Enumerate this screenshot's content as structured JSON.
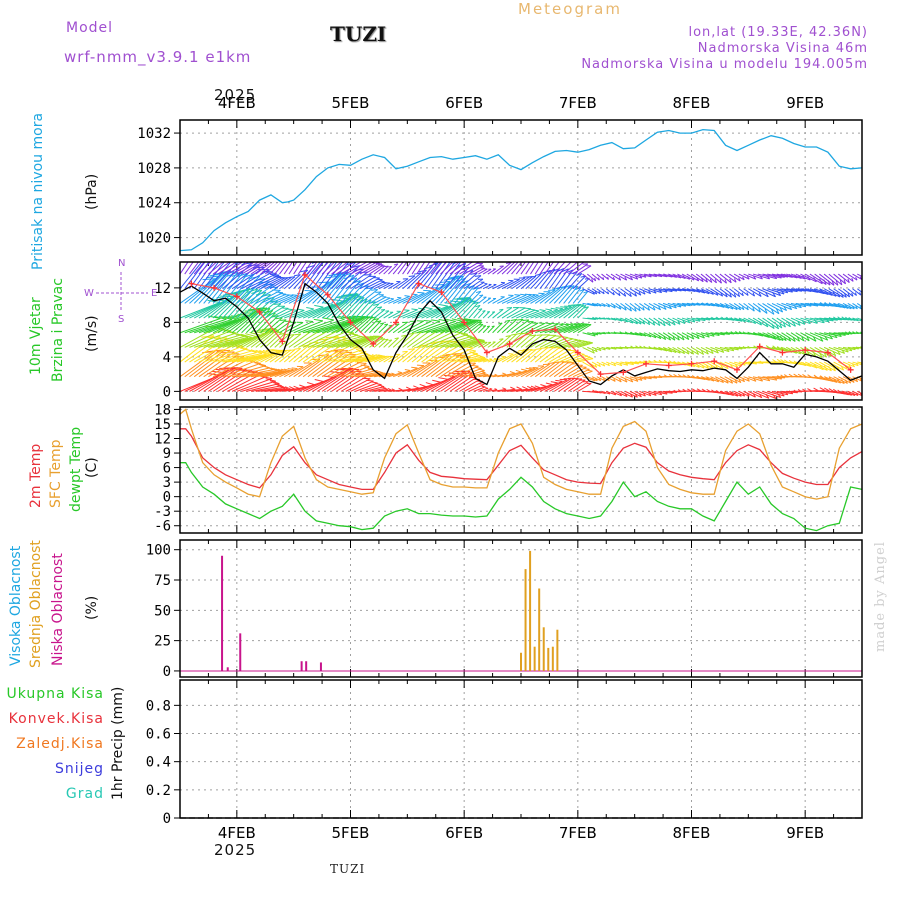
{
  "header": {
    "model_label": "Model",
    "model_name": "wrf-nmm_v3.9.1 e1km",
    "station": "TUZI",
    "meteogram": "Meteogram",
    "lonlat": "lon,lat (19.33E, 42.36N)",
    "elevation": "Nadmorska Visina 46m",
    "model_elevation": "Nadmorska Visina u modelu 194.005m",
    "footer_station": "TUZI",
    "credit": "made by Angel"
  },
  "time_axis": {
    "year": "2025",
    "day_labels": [
      "4FEB",
      "5FEB",
      "6FEB",
      "7FEB",
      "8FEB",
      "9FEB"
    ],
    "range_days": [
      -0.5,
      5.5
    ]
  },
  "chart_data": [
    {
      "type": "line",
      "name": "pressure",
      "ylabel": "(hPa)",
      "title_lines": [
        "Pritisak na nivou mora"
      ],
      "color": "#1ea7e1",
      "ylim": [
        1018,
        1033.5
      ],
      "yticks": [
        1020,
        1024,
        1028,
        1032
      ],
      "x": [
        -0.5,
        -0.4,
        -0.3,
        -0.2,
        -0.1,
        0,
        0.1,
        0.2,
        0.3,
        0.4,
        0.45,
        0.5,
        0.6,
        0.7,
        0.8,
        0.9,
        1,
        1.1,
        1.2,
        1.3,
        1.4,
        1.5,
        1.6,
        1.7,
        1.8,
        1.9,
        2,
        2.1,
        2.2,
        2.3,
        2.4,
        2.5,
        2.6,
        2.7,
        2.8,
        2.9,
        3,
        3.1,
        3.2,
        3.3,
        3.4,
        3.5,
        3.6,
        3.7,
        3.8,
        3.9,
        4,
        4.1,
        4.2,
        4.3,
        4.4,
        4.5,
        4.6,
        4.7,
        4.8,
        4.9,
        5,
        5.1,
        5.2,
        5.3,
        5.4,
        5.5
      ],
      "values": [
        1018.5,
        1018.6,
        1019.4,
        1020.8,
        1021.7,
        1022.4,
        1023.0,
        1024.3,
        1024.9,
        1024.0,
        1024.1,
        1024.3,
        1025.5,
        1027.0,
        1028.0,
        1028.4,
        1028.3,
        1029.0,
        1029.5,
        1029.2,
        1027.9,
        1028.2,
        1028.7,
        1029.2,
        1029.3,
        1029.0,
        1029.2,
        1029.4,
        1029.0,
        1029.5,
        1028.3,
        1027.8,
        1028.6,
        1029.3,
        1029.9,
        1030.0,
        1029.8,
        1030.1,
        1030.6,
        1030.9,
        1030.2,
        1030.3,
        1031.2,
        1032.1,
        1032.3,
        1032.0,
        1032.0,
        1032.4,
        1032.3,
        1030.6,
        1030.0,
        1030.6,
        1031.2,
        1031.7,
        1031.4,
        1030.8,
        1030.4,
        1030.4,
        1029.8,
        1028.2,
        1027.9,
        1028.0
      ]
    },
    {
      "type": "wind",
      "name": "wind",
      "ylabel": "(m/s)",
      "title_lines": [
        "10m Vjetar",
        "Brzina i Pravac"
      ],
      "ylim": [
        -1,
        15
      ],
      "yticks": [
        0,
        4,
        8,
        12
      ],
      "compass": {
        "n": "N",
        "s": "S",
        "e": "E",
        "w": "W"
      },
      "speed_x": [
        -0.5,
        -0.4,
        -0.3,
        -0.2,
        -0.1,
        0,
        0.1,
        0.2,
        0.3,
        0.4,
        0.5,
        0.6,
        0.7,
        0.8,
        0.9,
        1,
        1.1,
        1.2,
        1.3,
        1.4,
        1.5,
        1.6,
        1.7,
        1.8,
        1.9,
        2,
        2.1,
        2.2,
        2.3,
        2.4,
        2.5,
        2.6,
        2.7,
        2.8,
        2.9,
        3,
        3.1,
        3.2,
        3.3,
        3.4,
        3.5,
        3.6,
        3.7,
        3.8,
        3.9,
        4,
        4.1,
        4.2,
        4.3,
        4.4,
        4.5,
        4.6,
        4.7,
        4.8,
        4.9,
        5,
        5.1,
        5.2,
        5.3,
        5.4,
        5.5
      ],
      "speed_values": [
        11.5,
        12.2,
        11.4,
        10.5,
        10.8,
        9.8,
        8.5,
        6.0,
        4.5,
        4.2,
        8.0,
        12.5,
        11.5,
        10.2,
        7.8,
        6.0,
        5.0,
        2.5,
        1.5,
        4.5,
        6.5,
        9.0,
        10.5,
        9.2,
        6.5,
        4.8,
        1.5,
        0.8,
        4.0,
        5.0,
        4.2,
        5.5,
        6.0,
        5.8,
        4.8,
        3.0,
        1.2,
        0.8,
        1.8,
        2.5,
        1.8,
        2.2,
        2.6,
        2.4,
        2.3,
        2.5,
        2.4,
        2.7,
        2.5,
        1.5,
        2.8,
        4.5,
        3.2,
        3.2,
        2.8,
        4.3,
        4.0,
        3.5,
        2.4,
        1.3,
        1.8
      ],
      "gust_x": [
        -0.4,
        -0.2,
        0.0,
        0.2,
        0.4,
        0.6,
        0.8,
        1.0,
        1.2,
        1.4,
        1.6,
        1.8,
        2.0,
        2.2,
        2.4,
        2.6,
        2.8,
        3.0,
        3.2,
        3.4,
        3.6,
        3.8,
        4.0,
        4.2,
        4.4,
        4.6,
        4.8,
        5.0,
        5.2,
        5.4
      ],
      "gust_values": [
        12.5,
        12.0,
        11.0,
        9.2,
        5.8,
        13.5,
        11.2,
        8.0,
        5.5,
        8.0,
        12.5,
        11.5,
        8.0,
        4.5,
        5.5,
        7.0,
        7.2,
        4.5,
        2.0,
        2.2,
        3.2,
        3.0,
        3.2,
        3.5,
        2.5,
        5.2,
        4.5,
        4.8,
        4.5,
        2.5
      ]
    },
    {
      "type": "line",
      "name": "temperature",
      "ylabel": "(C)",
      "title_lines": [
        "2m Temp",
        "SFC Temp",
        "dewpt Temp"
      ],
      "ylim": [
        -7.5,
        18.5
      ],
      "yticks": [
        -6,
        -3,
        0,
        3,
        6,
        9,
        12,
        15,
        18
      ],
      "x": [
        -0.5,
        -0.45,
        -0.4,
        -0.3,
        -0.2,
        -0.1,
        0,
        0.1,
        0.2,
        0.3,
        0.4,
        0.5,
        0.6,
        0.7,
        0.8,
        0.9,
        1,
        1.1,
        1.2,
        1.3,
        1.4,
        1.5,
        1.6,
        1.7,
        1.8,
        1.9,
        2,
        2.1,
        2.2,
        2.3,
        2.4,
        2.5,
        2.6,
        2.7,
        2.8,
        2.9,
        3,
        3.1,
        3.2,
        3.3,
        3.4,
        3.5,
        3.6,
        3.7,
        3.8,
        3.9,
        4,
        4.1,
        4.2,
        4.3,
        4.4,
        4.5,
        4.6,
        4.7,
        4.8,
        4.9,
        5,
        5.1,
        5.2,
        5.3,
        5.4,
        5.5
      ],
      "series": [
        {
          "name": "2m Temp",
          "color": "#e8323c",
          "values": [
            14.0,
            14.0,
            12.5,
            8.0,
            6.0,
            4.5,
            3.5,
            2.5,
            1.8,
            4.5,
            8.5,
            10.3,
            7.0,
            4.5,
            3.5,
            2.5,
            2.0,
            1.5,
            1.5,
            5.0,
            9.0,
            10.7,
            7.5,
            5.0,
            4.2,
            4.0,
            3.7,
            3.6,
            3.5,
            6.5,
            9.5,
            10.6,
            8.0,
            5.5,
            4.5,
            3.5,
            3.0,
            2.8,
            2.7,
            7.0,
            10.0,
            11.0,
            10.2,
            7.0,
            5.3,
            4.5,
            4.0,
            3.7,
            3.5,
            7.0,
            9.5,
            10.7,
            9.7,
            7.0,
            4.8,
            3.8,
            3.0,
            2.5,
            2.5,
            6.0,
            8.0,
            9.3
          ]
        },
        {
          "name": "SFC Temp",
          "color": "#e8a030",
          "values": [
            17.0,
            18.0,
            14.0,
            7.0,
            4.5,
            3.0,
            1.8,
            0.5,
            0.0,
            7.0,
            12.5,
            14.5,
            8.0,
            3.5,
            2.0,
            1.5,
            1.0,
            0.5,
            0.8,
            8.0,
            13.0,
            14.8,
            9.0,
            3.5,
            2.5,
            2.0,
            2.0,
            1.8,
            1.8,
            9.0,
            14.0,
            15.0,
            11.0,
            4.0,
            2.5,
            1.5,
            1.0,
            0.5,
            0.5,
            10.0,
            14.5,
            15.5,
            13.5,
            6.0,
            2.5,
            1.5,
            0.8,
            0.5,
            0.5,
            9.5,
            13.5,
            15.0,
            13.0,
            6.5,
            2.0,
            1.0,
            0.0,
            -0.5,
            0.0,
            10.0,
            14.0,
            15.0
          ]
        },
        {
          "name": "dewpt Temp",
          "color": "#28c828",
          "values": [
            7.0,
            7.0,
            5.0,
            2.0,
            0.5,
            -1.5,
            -2.5,
            -3.5,
            -4.5,
            -3.0,
            -2.0,
            0.5,
            -3.0,
            -5.0,
            -5.5,
            -6.0,
            -6.2,
            -6.8,
            -6.5,
            -4.0,
            -3.0,
            -2.5,
            -3.5,
            -3.5,
            -3.8,
            -4.0,
            -4.0,
            -4.2,
            -4.0,
            -0.5,
            1.5,
            4.0,
            2.0,
            -1.0,
            -2.5,
            -3.5,
            -4.0,
            -4.5,
            -4.0,
            -1.0,
            3.0,
            0.0,
            1.0,
            -1.0,
            -2.0,
            -2.5,
            -2.5,
            -4.0,
            -5.0,
            -1.0,
            3.0,
            0.5,
            2.0,
            -1.5,
            -3.5,
            -4.5,
            -6.5,
            -7.0,
            -6.0,
            -5.5,
            2.0,
            1.5
          ]
        }
      ]
    },
    {
      "type": "bar",
      "name": "cloud",
      "ylabel": "(%)",
      "title_lines": [
        "Visoka Oblacnost",
        "Srednja Oblacnost",
        "Niska Oblacnost"
      ],
      "ylim": [
        -5,
        108
      ],
      "yticks": [
        0,
        25,
        50,
        75,
        100
      ],
      "series": [
        {
          "name": "Niska Oblacnost",
          "color": "#c8148c",
          "x": [
            -0.13,
            -0.08,
            0.03,
            0.57,
            0.61,
            0.74
          ],
          "values": [
            95,
            3,
            31,
            8,
            8,
            7
          ]
        },
        {
          "name": "Srednja Oblacnost",
          "color": "#e0a020",
          "x": [
            2.5,
            2.54,
            2.58,
            2.62,
            2.66,
            2.7,
            2.74,
            2.78,
            2.82,
            2.86
          ],
          "values": [
            15,
            84,
            99,
            20,
            68,
            36,
            19,
            20,
            34,
            0
          ]
        }
      ]
    },
    {
      "type": "bar",
      "name": "precip",
      "ylabel": "1hr Precip (mm)",
      "ylim": [
        0,
        0.98
      ],
      "yticks": [
        0,
        0.2,
        0.4,
        0.6,
        0.8
      ],
      "legend": [
        {
          "name": "Ukupna Kisa",
          "color": "#28c828"
        },
        {
          "name": "Konvek.Kisa",
          "color": "#e8323c"
        },
        {
          "name": "Zaledj.Kisa",
          "color": "#f07820"
        },
        {
          "name": "Snijeg",
          "color": "#3c3cdc"
        },
        {
          "name": "Grad",
          "color": "#28c8b4"
        }
      ],
      "values": []
    }
  ]
}
